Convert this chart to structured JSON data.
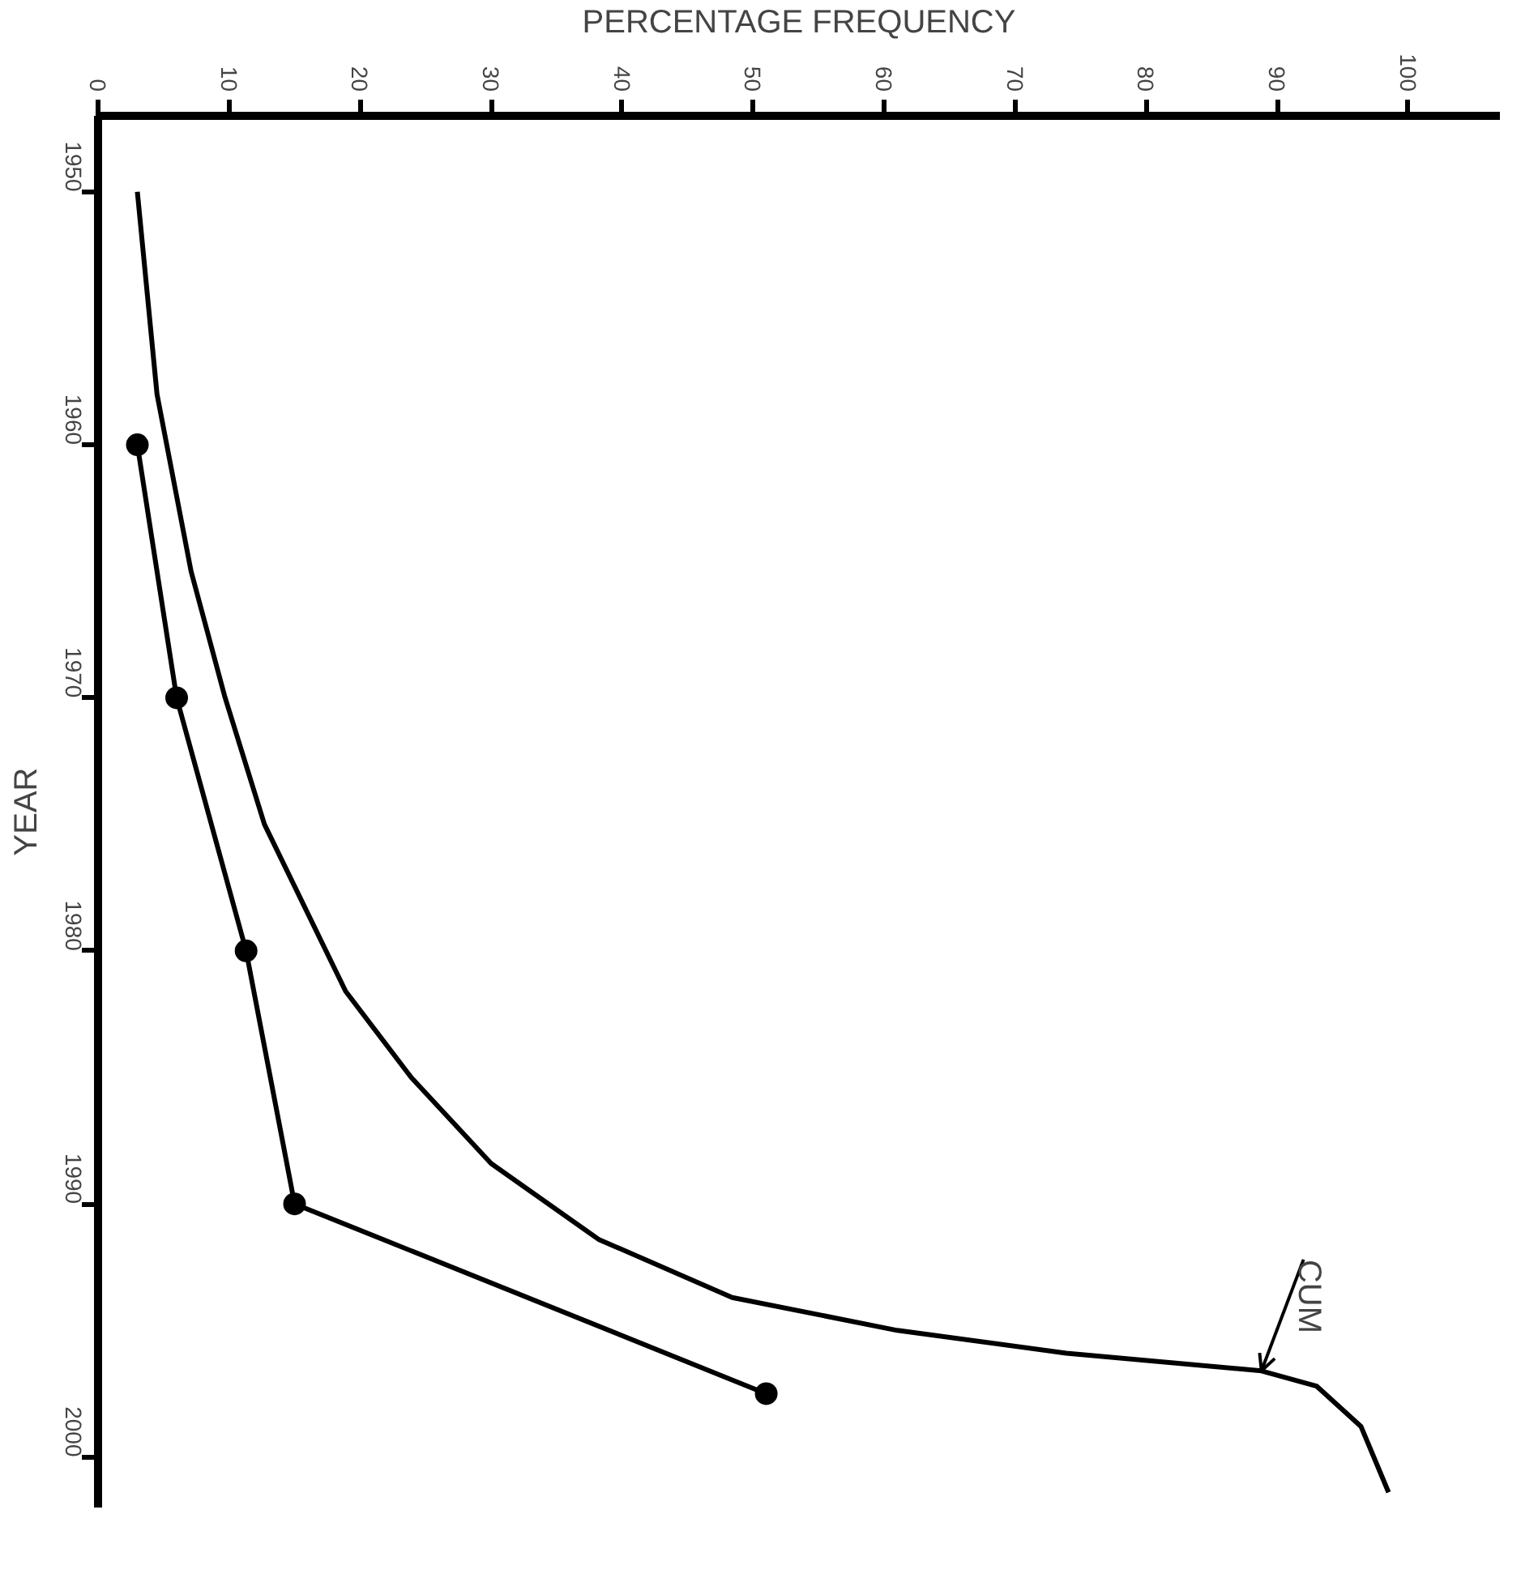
{
  "chart_data": {
    "type": "line",
    "xlabel": "PERCENTAGE FREQUENCY",
    "ylabel": "YEAR",
    "xlim": [
      0,
      107
    ],
    "xticks": [
      0,
      10,
      20,
      30,
      40,
      50,
      60,
      70,
      80,
      90,
      100
    ],
    "ylim": [
      2002,
      1947
    ],
    "yticks": [
      1950,
      1960,
      1970,
      1980,
      1990,
      2000
    ],
    "grid": false,
    "series": [
      {
        "color": "#000000",
        "marker": "circle",
        "x": [
          3,
          6,
          11.3,
          15,
          51
        ],
        "values": [
          1960,
          1970,
          1980,
          1990,
          1997.5
        ]
      },
      {
        "color": "#000000",
        "marker": "none",
        "x": [
          3,
          4.5,
          7.1,
          9.7,
          12.7,
          18.9,
          23.9,
          30,
          38.2,
          48.4,
          61,
          73.9,
          88.8,
          93,
          96.4,
          98.5
        ],
        "values": [
          1950,
          1958,
          1965,
          1970,
          1975,
          1981.6,
          1985,
          1988.4,
          1991.4,
          1993.7,
          1995,
          1995.9,
          1996.6,
          1997.2,
          1998.8,
          2001.4
        ]
      }
    ],
    "annotations": [
      {
        "text": "CUM",
        "x": 88.8,
        "y": 1996.6
      }
    ]
  }
}
